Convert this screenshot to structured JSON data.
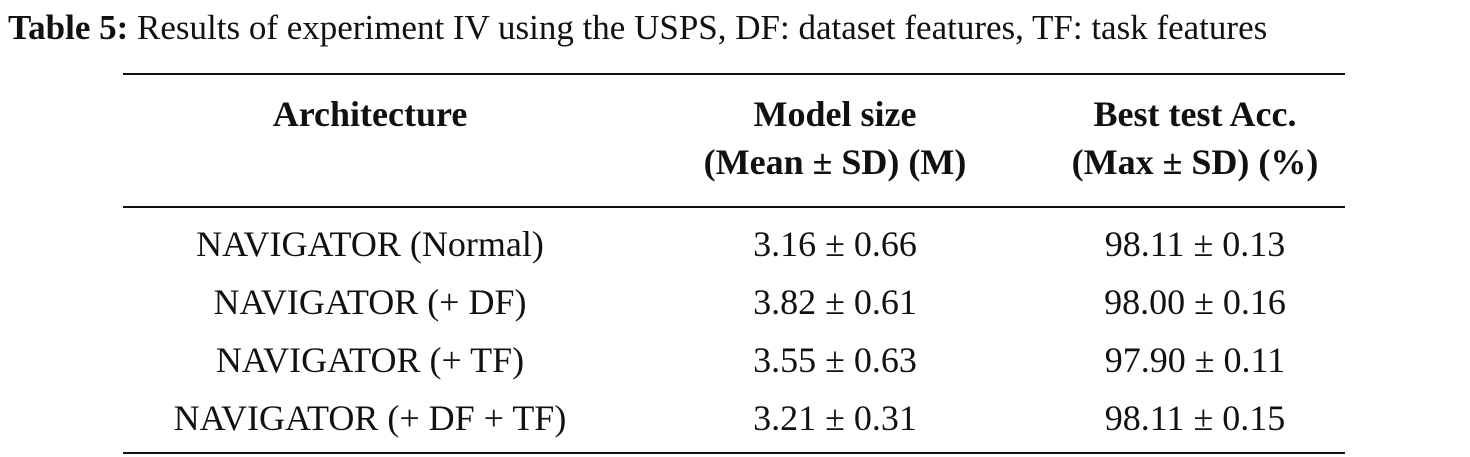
{
  "caption": {
    "label": "Table 5:",
    "text": "Results of experiment IV using the USPS, DF: dataset features, TF: task features"
  },
  "table": {
    "headers": [
      {
        "line1": "Architecture",
        "line2": ""
      },
      {
        "line1": "Model size",
        "line2": "(Mean ± SD) (M)"
      },
      {
        "line1": "Best test Acc.",
        "line2": "(Max ± SD) (%)"
      }
    ],
    "rows": [
      {
        "architecture": "NAVIGATOR (Normal)",
        "model_size": "3.16 ± 0.66",
        "best_acc": "98.11 ± 0.13"
      },
      {
        "architecture": "NAVIGATOR (+ DF)",
        "model_size": "3.82 ± 0.61",
        "best_acc": "98.00 ± 0.16"
      },
      {
        "architecture": "NAVIGATOR (+ TF)",
        "model_size": "3.55 ± 0.63",
        "best_acc": "97.90 ± 0.11"
      },
      {
        "architecture": "NAVIGATOR (+ DF + TF)",
        "model_size": "3.21 ± 0.31",
        "best_acc": "98.11 ± 0.15"
      }
    ]
  }
}
